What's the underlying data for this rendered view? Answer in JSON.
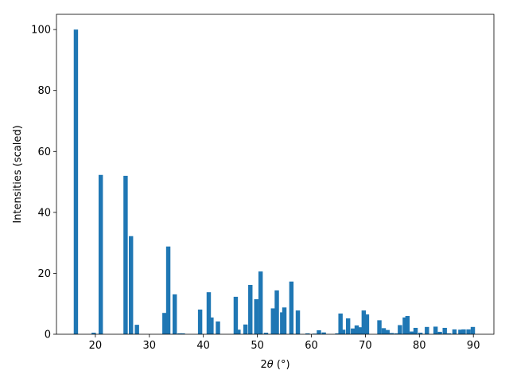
{
  "chart_data": {
    "type": "bar",
    "xlabel_main": "2",
    "xlabel_symbol": "θ",
    "xlabel_unit": " (°)",
    "ylabel": "Intensities (scaled)",
    "xlim": [
      12.8,
      93.8
    ],
    "ylim": [
      0,
      105
    ],
    "xticks": [
      20,
      30,
      40,
      50,
      60,
      70,
      80,
      90
    ],
    "yticks": [
      0,
      20,
      40,
      60,
      80,
      100
    ],
    "bar_width": 0.8,
    "bar_color": "#1f77b4",
    "grid": false,
    "x": [
      16.4,
      19.7,
      21.0,
      25.6,
      26.6,
      27.7,
      32.8,
      33.5,
      34.7,
      35.6,
      36.2,
      39.4,
      41.0,
      41.5,
      42.7,
      46.0,
      46.5,
      47.8,
      48.7,
      49.8,
      50.6,
      51.6,
      52.9,
      53.6,
      54.6,
      55.0,
      56.3,
      57.5,
      59.3,
      60.6,
      61.4,
      62.3,
      64.8,
      65.4,
      65.9,
      66.8,
      67.7,
      68.4,
      69.1,
      69.7,
      70.3,
      72.6,
      73.4,
      74.1,
      74.9,
      75.8,
      76.4,
      77.3,
      77.8,
      78.6,
      79.3,
      80.2,
      81.4,
      83.0,
      83.8,
      84.7,
      85.5,
      86.5,
      87.6,
      88.2,
      89.1,
      89.9
    ],
    "values": [
      100,
      0.5,
      52.3,
      52.0,
      32.2,
      3.1,
      7.0,
      28.8,
      13.1,
      0.3,
      0.3,
      8.1,
      13.8,
      5.5,
      4.2,
      12.3,
      1.5,
      3.2,
      16.2,
      11.5,
      20.6,
      0.5,
      8.5,
      14.4,
      7.2,
      8.8,
      17.3,
      7.8,
      0.3,
      0.2,
      1.3,
      0.6,
      0.3,
      6.8,
      1.5,
      5.2,
      1.9,
      2.9,
      2.3,
      7.8,
      6.5,
      4.6,
      2.0,
      1.4,
      0.4,
      0.3,
      3.0,
      5.5,
      6.0,
      0.9,
      2.1,
      0.5,
      2.4,
      2.5,
      0.8,
      2.1,
      0.3,
      1.6,
      1.5,
      1.6,
      1.6,
      2.4
    ]
  }
}
